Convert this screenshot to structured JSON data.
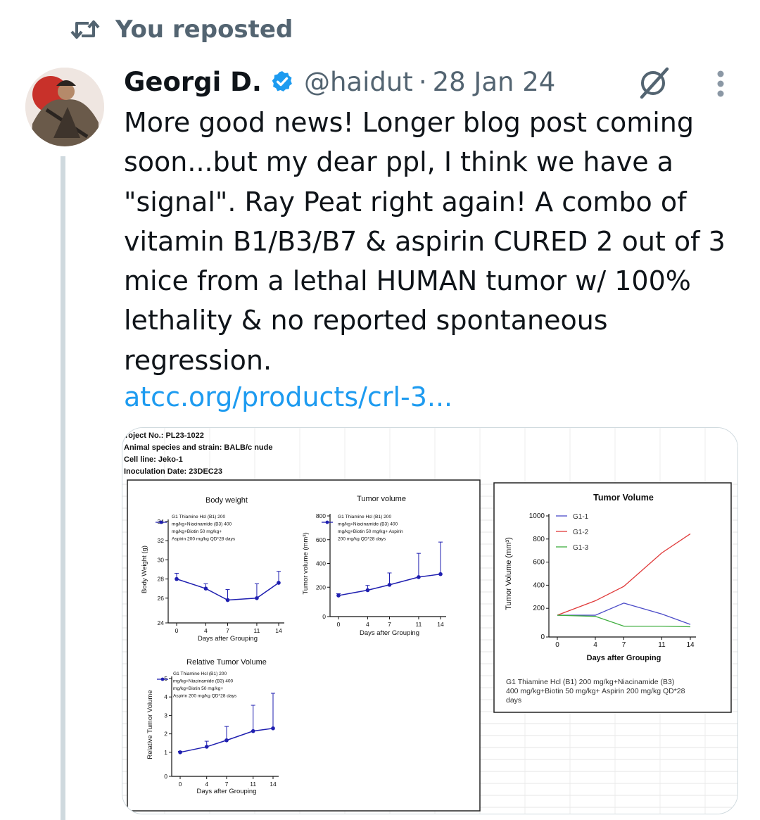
{
  "repost": {
    "label": "You reposted",
    "icon": "repost-icon"
  },
  "author": {
    "name": "Georgi D.",
    "handle": "@haidut",
    "separator": "·",
    "date": "28 Jan 24",
    "verified_color": "#1d9bf0"
  },
  "tweet": {
    "text": "More good news! Longer blog post coming\nsoon...but my dear ppl, I think we have a\n\"signal\". Ray Peat right again! A combo of\nvitamin B1/B3/B7 & aspirin CURED 2 out of 3\nmice from a lethal HUMAN tumor w/ 100%\nlethality & no reported spontaneous\nregression.",
    "link": "atcc.org/products/crl-3..."
  },
  "media": {
    "header_lines": [
      "roject No.:  PL23-1022",
      "Animal species and strain: BALB/c nude",
      "Cell line: Jeko-1",
      "Inoculation Date: 23DEC23"
    ],
    "legend_text": "G1 Thiamine Hcl (B1) 200 mg/kg+Niacinamide (B3) 400 mg/kg+Biotin 50 mg/kg+ Aspirin 200 mg/kg QD*28 days",
    "legend_lines": [
      "G1 Thiamine Hcl (B1) 200",
      "mg/kg+Niacinamide (B3) 400",
      "mg/kg+Biotin 50 mg/kg+",
      "Aspirin 200 mg/kg QD*28 days"
    ],
    "tumor_legend_lines": [
      "G1 Thiamine Hcl (B1) 200",
      "mg/kg+Niacinamide (B3) 400",
      "mg/kg+Biotin 50 mg/kg+ Aspirin",
      "200 mg/kg QD*28 days"
    ],
    "right_caption_lines": [
      "G1 Thiamine Hcl (B1) 200 mg/kg+Niacinamide (B3)",
      "400 mg/kg+Biotin 50 mg/kg+ Aspirin 200 mg/kg QD*28",
      "days"
    ]
  },
  "chart_data": [
    {
      "type": "line",
      "title": "Body weight",
      "xlabel": "Days after Grouping",
      "ylabel": "Body Weight (g)",
      "x": [
        0,
        4,
        7,
        11,
        14
      ],
      "xticks": [
        "0",
        "4",
        "7",
        "11",
        "14"
      ],
      "yticks": [
        24,
        26,
        28,
        30,
        32,
        34
      ],
      "ylim": [
        24,
        34
      ],
      "series": [
        {
          "values": [
            28.0,
            27.0,
            25.8,
            26.0,
            27.6
          ],
          "error": [
            0.6,
            0.5,
            1.1,
            1.5,
            1.2
          ]
        }
      ],
      "color": "#1f1fb0"
    },
    {
      "type": "line",
      "title": "Tumor volume",
      "xlabel": "Days after Grouping",
      "ylabel": "Tumor volume (mm³)",
      "x": [
        0,
        4,
        7,
        11,
        14
      ],
      "xticks": [
        "0",
        "4",
        "7",
        "11",
        "14"
      ],
      "yticks": [
        0,
        200,
        400,
        600,
        800
      ],
      "ylim": [
        0,
        800
      ],
      "series": [
        {
          "values": [
            130,
            175,
            220,
            285,
            310
          ],
          "error": [
            15,
            40,
            100,
            200,
            270
          ]
        }
      ],
      "color": "#1f1fb0"
    },
    {
      "type": "line",
      "title": "Relative Tumor Volume",
      "xlabel": "Days after Grouping",
      "ylabel": "Relative Tumor Volume",
      "x": [
        0,
        4,
        7,
        11,
        14
      ],
      "xticks": [
        "0",
        "4",
        "7",
        "11",
        "14"
      ],
      "yticks": [
        0,
        1,
        2,
        3,
        4,
        5
      ],
      "ylim": [
        0,
        5
      ],
      "series": [
        {
          "values": [
            1.0,
            1.3,
            1.65,
            2.15,
            2.3
          ],
          "error": [
            0.05,
            0.3,
            0.75,
            1.4,
            1.9
          ]
        }
      ],
      "color": "#1f1fb0"
    },
    {
      "type": "line",
      "title": "Tumor Volume",
      "xlabel": "Days after Grouping",
      "ylabel": "Tumor Volume (mm³)",
      "x": [
        0,
        4,
        7,
        11,
        14
      ],
      "xticks": [
        "0",
        "4",
        "7",
        "11",
        "14"
      ],
      "yticks": [
        0,
        200,
        400,
        600,
        800,
        1000
      ],
      "ylim": [
        0,
        1000
      ],
      "legend": "top-left",
      "series": [
        {
          "name": "G1-1",
          "values": [
            140,
            140,
            245,
            150,
            60
          ],
          "color": "#4b4bc8"
        },
        {
          "name": "G1-2",
          "values": [
            140,
            265,
            390,
            680,
            845
          ],
          "color": "#e03a3a"
        },
        {
          "name": "G1-3",
          "values": [
            140,
            130,
            45,
            45,
            40
          ],
          "color": "#3fae3f"
        }
      ]
    }
  ]
}
